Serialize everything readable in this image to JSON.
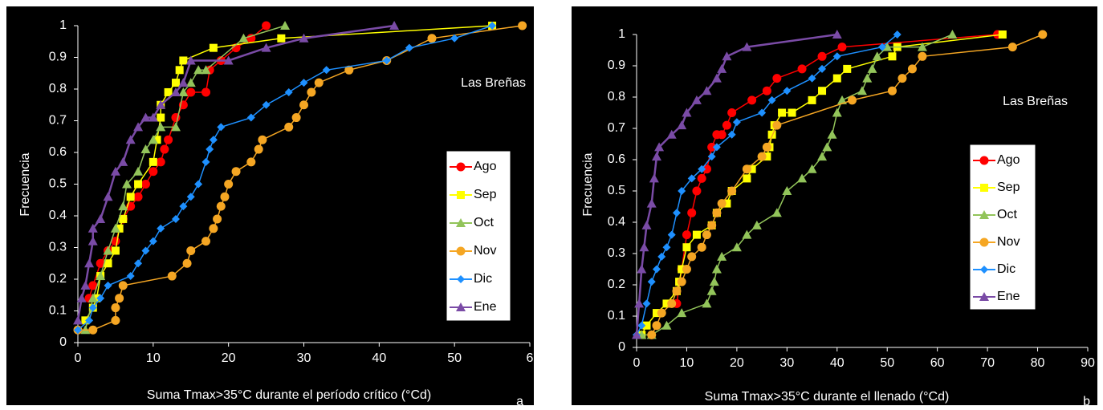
{
  "chart_data": [
    {
      "type": "line",
      "panel": "a",
      "annotation": "Las Breñas",
      "x_label": "Suma Tmax>35°C durante el período crítico (°Cd)",
      "y_label": "Frecuencia",
      "xlim": [
        0,
        60
      ],
      "ylim": [
        0,
        1
      ],
      "xticks": [
        0,
        10,
        20,
        30,
        40,
        50,
        {
          "value": 60,
          "label": "6"
        }
      ],
      "yticks": [
        0,
        0.1,
        0.2,
        0.3,
        0.4,
        0.5,
        0.6,
        0.7,
        0.8,
        0.9,
        1
      ],
      "legend": "right",
      "series": [
        {
          "name": "Ago",
          "color": "#ff0000",
          "marker": "circle",
          "x": [
            1.5,
            2,
            3,
            4,
            5,
            6,
            7,
            8,
            9,
            10,
            11,
            11.5,
            12,
            13,
            14,
            15,
            17,
            17.5,
            19,
            21,
            23,
            25
          ],
          "values": [
            0.14,
            0.18,
            0.25,
            0.29,
            0.32,
            0.39,
            0.43,
            0.46,
            0.5,
            0.54,
            0.57,
            0.61,
            0.64,
            0.71,
            0.75,
            0.79,
            0.79,
            0.86,
            0.89,
            0.93,
            0.96,
            1
          ]
        },
        {
          "name": "Sep",
          "color": "#ffff00",
          "marker": "square",
          "x": [
            1,
            2,
            2.5,
            3,
            4,
            5,
            5.5,
            6,
            7,
            8,
            10,
            10.5,
            11,
            11,
            12,
            13,
            13.5,
            14,
            18,
            27,
            55
          ],
          "values": [
            0.07,
            0.11,
            0.14,
            0.21,
            0.25,
            0.29,
            0.36,
            0.39,
            0.46,
            0.5,
            0.57,
            0.64,
            0.71,
            0.75,
            0.79,
            0.82,
            0.86,
            0.89,
            0.93,
            0.96,
            1
          ]
        },
        {
          "name": "Oct",
          "color": "#92c45a",
          "marker": "triangle",
          "x": [
            1,
            2,
            3,
            4,
            5,
            6,
            6.5,
            8,
            9,
            10,
            11,
            13,
            14,
            15,
            16,
            17,
            22,
            27.5
          ],
          "values": [
            0.04,
            0.14,
            0.21,
            0.29,
            0.36,
            0.43,
            0.5,
            0.54,
            0.61,
            0.64,
            0.68,
            0.68,
            0.79,
            0.82,
            0.86,
            0.86,
            0.96,
            1
          ]
        },
        {
          "name": "Nov",
          "color": "#f5a623",
          "marker": "circle",
          "x": [
            0,
            2,
            5,
            5,
            5.5,
            6,
            12.5,
            14.5,
            15,
            17,
            18,
            18.5,
            19,
            19.5,
            20,
            21,
            23,
            24,
            24.5,
            28,
            29,
            30,
            31,
            32,
            36,
            41,
            47,
            59
          ],
          "values": [
            0.04,
            0.04,
            0.07,
            0.11,
            0.14,
            0.18,
            0.21,
            0.25,
            0.29,
            0.32,
            0.36,
            0.39,
            0.43,
            0.46,
            0.5,
            0.54,
            0.57,
            0.61,
            0.64,
            0.68,
            0.71,
            0.75,
            0.79,
            0.82,
            0.86,
            0.89,
            0.96,
            1
          ]
        },
        {
          "name": "Dic",
          "color": "#1e90ff",
          "marker": "diamond",
          "x": [
            0,
            1.5,
            2,
            3,
            4,
            7,
            8,
            9,
            10,
            11,
            13,
            14,
            15,
            16,
            17,
            17.5,
            18,
            19,
            23,
            25,
            28,
            30,
            33,
            41,
            44,
            50,
            55
          ],
          "values": [
            0.04,
            0.07,
            0.11,
            0.14,
            0.18,
            0.21,
            0.25,
            0.29,
            0.32,
            0.36,
            0.39,
            0.43,
            0.46,
            0.5,
            0.57,
            0.61,
            0.64,
            0.68,
            0.71,
            0.75,
            0.79,
            0.82,
            0.86,
            0.89,
            0.93,
            0.96,
            1
          ]
        },
        {
          "name": "Ene",
          "color": "#7a4ba6",
          "marker": "triangle",
          "x": [
            0,
            0.5,
            1,
            1.5,
            2,
            2,
            3,
            4,
            5,
            6,
            7,
            8,
            9,
            10,
            11,
            13,
            14,
            15,
            20,
            25,
            30,
            42
          ],
          "values": [
            0.07,
            0.14,
            0.18,
            0.25,
            0.32,
            0.36,
            0.39,
            0.46,
            0.54,
            0.57,
            0.64,
            0.68,
            0.71,
            0.71,
            0.75,
            0.79,
            0.82,
            0.89,
            0.89,
            0.93,
            0.96,
            1
          ]
        }
      ]
    },
    {
      "type": "line",
      "panel": "b",
      "annotation": "Las Breñas",
      "x_label": "Suma Tmax>35°C durante el llenado (°Cd)",
      "y_label": "Frecuencia",
      "xlim": [
        0,
        90
      ],
      "ylim": [
        0,
        1
      ],
      "xticks": [
        0,
        10,
        20,
        30,
        40,
        50,
        60,
        70,
        80,
        90
      ],
      "yticks": [
        0,
        0.1,
        0.2,
        0.3,
        0.4,
        0.5,
        0.6,
        0.7,
        0.8,
        0.9,
        1
      ],
      "legend": "right",
      "series": [
        {
          "name": "Ago",
          "color": "#ff0000",
          "marker": "circle",
          "x": [
            8,
            9,
            10,
            11,
            12,
            13,
            14,
            15,
            16,
            17,
            18,
            19,
            23,
            26,
            28,
            33,
            37,
            41,
            72
          ],
          "values": [
            0.14,
            0.25,
            0.36,
            0.43,
            0.5,
            0.54,
            0.57,
            0.64,
            0.68,
            0.68,
            0.71,
            0.75,
            0.79,
            0.82,
            0.86,
            0.89,
            0.93,
            0.96,
            1
          ]
        },
        {
          "name": "Sep",
          "color": "#ffff00",
          "marker": "square",
          "x": [
            1,
            2,
            4,
            6,
            8,
            8.5,
            9,
            10,
            12,
            15,
            16,
            18,
            19,
            22,
            23,
            26,
            26.5,
            27,
            27.5,
            29,
            31,
            35,
            37,
            40,
            42,
            51,
            52,
            73
          ],
          "values": [
            0.04,
            0.07,
            0.11,
            0.14,
            0.18,
            0.21,
            0.25,
            0.32,
            0.36,
            0.39,
            0.43,
            0.46,
            0.5,
            0.54,
            0.57,
            0.61,
            0.64,
            0.68,
            0.71,
            0.75,
            0.75,
            0.79,
            0.82,
            0.86,
            0.89,
            0.93,
            0.96,
            1
          ]
        },
        {
          "name": "Oct",
          "color": "#92c45a",
          "marker": "triangle",
          "x": [
            1,
            3,
            6,
            9,
            14,
            15,
            15.5,
            16,
            17,
            20,
            22,
            24,
            28,
            30,
            33,
            35,
            37,
            38,
            39,
            40,
            41,
            45,
            46,
            47,
            48,
            50,
            57,
            63
          ],
          "values": [
            0.04,
            0.04,
            0.07,
            0.11,
            0.14,
            0.18,
            0.21,
            0.25,
            0.29,
            0.32,
            0.36,
            0.39,
            0.43,
            0.5,
            0.54,
            0.57,
            0.61,
            0.64,
            0.68,
            0.75,
            0.79,
            0.82,
            0.86,
            0.89,
            0.93,
            0.96,
            0.96,
            1
          ]
        },
        {
          "name": "Nov",
          "color": "#f5a623",
          "marker": "circle",
          "x": [
            3,
            4,
            5,
            7,
            8,
            9,
            10,
            11,
            13,
            14,
            15,
            16,
            17,
            19,
            22,
            25,
            26,
            28,
            43,
            51,
            53,
            55,
            57,
            75,
            81
          ],
          "values": [
            0.04,
            0.07,
            0.11,
            0.14,
            0.18,
            0.21,
            0.25,
            0.29,
            0.32,
            0.36,
            0.39,
            0.43,
            0.46,
            0.5,
            0.57,
            0.61,
            0.64,
            0.71,
            0.79,
            0.82,
            0.86,
            0.89,
            0.93,
            0.96,
            1
          ]
        },
        {
          "name": "Dic",
          "color": "#1e90ff",
          "marker": "diamond",
          "x": [
            0,
            1,
            2,
            3,
            4,
            5,
            6,
            7,
            8,
            9,
            11,
            13,
            15,
            16,
            19,
            20,
            25,
            27,
            30,
            35,
            37,
            40,
            49,
            52
          ],
          "values": [
            0.04,
            0.07,
            0.14,
            0.21,
            0.25,
            0.29,
            0.32,
            0.36,
            0.43,
            0.5,
            0.54,
            0.57,
            0.61,
            0.64,
            0.68,
            0.72,
            0.75,
            0.79,
            0.82,
            0.86,
            0.89,
            0.93,
            0.96,
            1
          ]
        },
        {
          "name": "Ene",
          "color": "#7a4ba6",
          "marker": "triangle",
          "x": [
            0,
            0.5,
            1,
            1.5,
            2,
            3,
            3.5,
            4,
            4.5,
            7,
            9,
            10,
            12,
            14,
            16,
            17,
            18,
            22,
            40
          ],
          "values": [
            0.04,
            0.14,
            0.25,
            0.32,
            0.39,
            0.46,
            0.54,
            0.61,
            0.64,
            0.68,
            0.71,
            0.75,
            0.79,
            0.82,
            0.86,
            0.89,
            0.93,
            0.96,
            1
          ]
        }
      ]
    }
  ]
}
